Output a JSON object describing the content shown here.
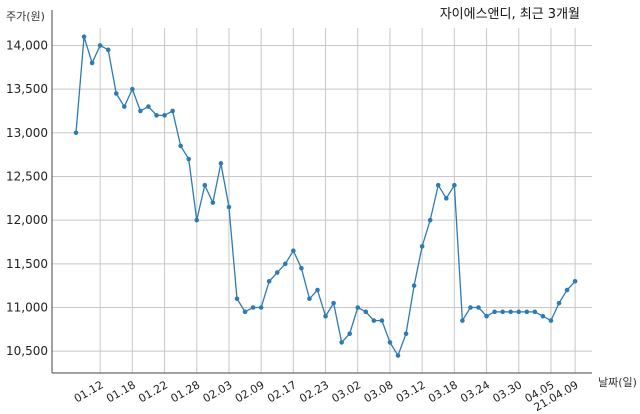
{
  "chart_data": {
    "type": "line",
    "title": "자이에스앤디, 최근 3개월",
    "ylabel": "주가(원)",
    "xlabel": "날짜(일)",
    "ylim": [
      10250,
      14200
    ],
    "yticks": [
      10500,
      11000,
      11500,
      12000,
      12500,
      13000,
      13500,
      14000
    ],
    "ytick_labels": [
      "10,500",
      "11,000",
      "11,500",
      "12,000",
      "12,500",
      "13,000",
      "13,500",
      "14,000"
    ],
    "xtick_labels": [
      "01.12",
      "01.18",
      "01.22",
      "01.28",
      "02.03",
      "02.09",
      "02.17",
      "02.23",
      "03.02",
      "03.08",
      "03.12",
      "03.18",
      "03.24",
      "03.30",
      "04.05",
      "21.04.09"
    ],
    "xtick_index": [
      3,
      7,
      11,
      15,
      19,
      23,
      27,
      31,
      35,
      39,
      43,
      47,
      51,
      55,
      59,
      62
    ],
    "grid": true,
    "line_color": "#2e7bb2",
    "series": [
      {
        "values": [
          13000,
          14100,
          13800,
          14000,
          13950,
          13450,
          13300,
          13500,
          13250,
          13300,
          13200,
          13200,
          13250,
          12850,
          12700,
          12000,
          12400,
          12200,
          12650,
          12150,
          11100,
          10950,
          11000,
          11000,
          11300,
          11400,
          11500,
          11650,
          11450,
          11100,
          11200,
          10900,
          11050,
          10600,
          10700,
          11000,
          10950,
          10850,
          10850,
          10600,
          10450,
          10700,
          11250,
          11700,
          12000,
          12400,
          12250,
          12400,
          10850,
          11000,
          11000,
          10900,
          10950,
          10950,
          10950,
          10950,
          10950,
          10950,
          10900,
          10850,
          11050,
          11200,
          11300
        ]
      }
    ]
  }
}
